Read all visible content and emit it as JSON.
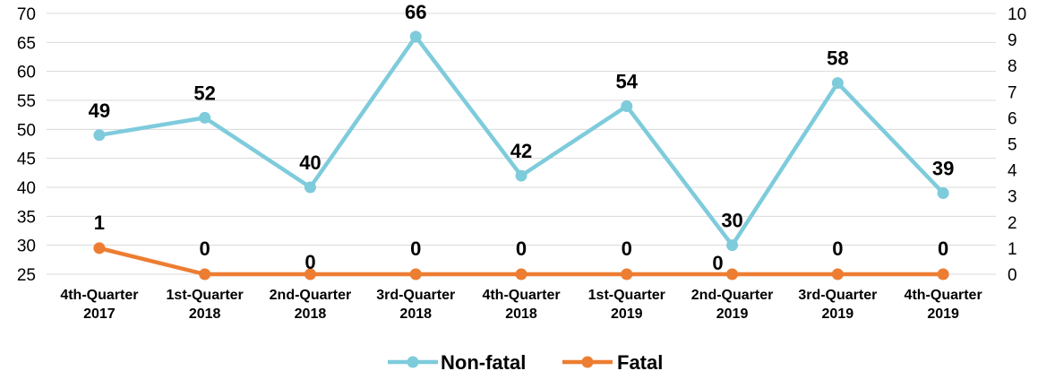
{
  "chart_data": {
    "type": "line",
    "categories": [
      [
        "4th-Quarter",
        "2017"
      ],
      [
        "1st-Quarter",
        "2018"
      ],
      [
        "2nd-Quarter",
        "2018"
      ],
      [
        "3rd-Quarter",
        "2018"
      ],
      [
        "4th-Quarter",
        "2018"
      ],
      [
        "1st-Quarter",
        "2019"
      ],
      [
        "2nd-Quarter",
        "2019"
      ],
      [
        "3rd-Quarter",
        "2019"
      ],
      [
        "4th-Quarter",
        "2019"
      ]
    ],
    "series": [
      {
        "name": "Non-fatal",
        "axis": "left",
        "color": "#7ecbdc",
        "values": [
          49,
          52,
          40,
          66,
          42,
          54,
          30,
          58,
          39
        ],
        "labels": [
          "49",
          "52",
          "40",
          "66",
          "42",
          "54",
          "30",
          "58",
          "39"
        ]
      },
      {
        "name": "Fatal",
        "axis": "right",
        "color": "#ed7d31",
        "values": [
          1,
          0,
          0,
          0,
          0,
          0,
          0,
          0,
          0
        ],
        "labels": [
          "1",
          "0",
          "0",
          "0",
          "0",
          "0",
          "0",
          "0",
          "0"
        ]
      }
    ],
    "left_axis": {
      "min": 25,
      "max": 70,
      "step": 5,
      "ticks": [
        "25",
        "30",
        "35",
        "40",
        "45",
        "50",
        "55",
        "60",
        "65",
        "70"
      ]
    },
    "right_axis": {
      "min": 0,
      "max": 10,
      "step": 1,
      "ticks": [
        "0",
        "1",
        "2",
        "3",
        "4",
        "5",
        "6",
        "7",
        "8",
        "9",
        "10"
      ]
    },
    "grid": true,
    "legend": "bottom-center",
    "gridline_color": "#d9d9d9"
  }
}
